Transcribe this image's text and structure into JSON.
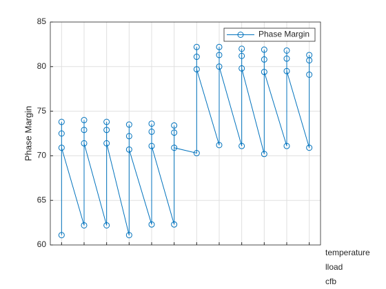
{
  "chart_data": {
    "type": "line",
    "ylabel": "Phase Margin",
    "x": [
      1,
      1,
      1,
      1,
      2,
      2,
      2,
      2,
      3,
      3,
      3,
      3,
      4,
      4,
      4,
      4,
      5,
      5,
      5,
      5,
      6,
      6,
      6,
      6,
      7,
      7,
      7,
      7,
      8,
      8,
      8,
      8,
      9,
      9,
      9,
      9,
      10,
      10,
      10,
      10,
      11,
      11,
      11,
      11,
      12,
      12,
      12,
      12
    ],
    "series": [
      {
        "name": "Phase Margin",
        "color": "#0072bd",
        "values": [
          61.1,
          73.8,
          72.5,
          70.9,
          62.2,
          74.0,
          72.9,
          71.4,
          62.2,
          73.8,
          72.9,
          71.4,
          61.1,
          73.5,
          72.2,
          70.7,
          62.3,
          73.6,
          72.7,
          71.1,
          62.3,
          73.4,
          72.6,
          70.9,
          70.3,
          82.2,
          81.1,
          79.7,
          71.2,
          82.2,
          81.3,
          80.0,
          71.1,
          82.0,
          81.2,
          79.8,
          70.2,
          81.9,
          80.8,
          79.4,
          71.1,
          81.8,
          80.9,
          79.5,
          70.9,
          81.3,
          80.7,
          79.1
        ]
      }
    ],
    "xlim": [
      0.5,
      12.5
    ],
    "xticks": [
      1,
      2,
      3,
      4,
      5,
      6,
      7,
      8,
      9,
      10,
      11,
      12
    ],
    "ylim": [
      60,
      85
    ],
    "yticks": [
      60,
      65,
      70,
      75,
      80,
      85
    ],
    "grid": true,
    "legend": "top-right",
    "group_rows": [
      "temperature",
      "lload",
      "cfb"
    ]
  }
}
